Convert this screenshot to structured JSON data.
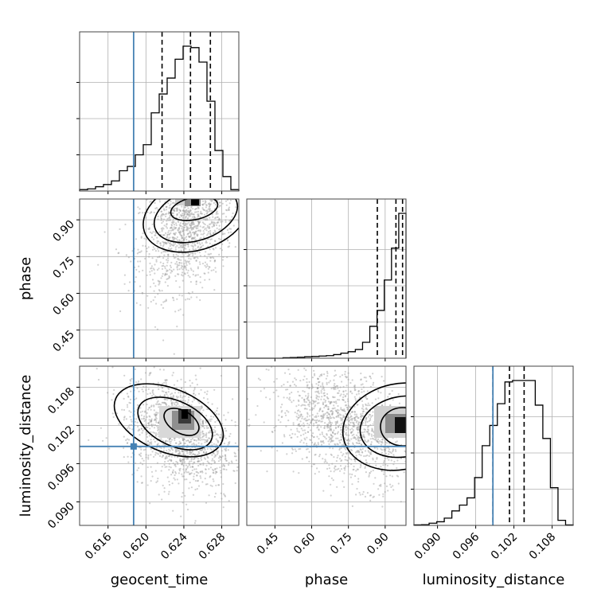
{
  "chart_data": {
    "type": "corner",
    "parameters": [
      "geocent_time",
      "phase",
      "luminosity_distance"
    ],
    "truths": {
      "geocent_time": 0.6187,
      "phase": null,
      "luminosity_distance": 0.0987
    },
    "truth_color": "#4682b4",
    "ranges": {
      "geocent_time": [
        0.613,
        0.6298
      ],
      "phase": [
        0.335,
        0.985
      ],
      "luminosity_distance": [
        0.0863,
        0.1113
      ]
    },
    "ticks": {
      "geocent_time": [
        "0.616",
        "0.620",
        "0.624",
        "0.628"
      ],
      "phase": [
        "0.45",
        "0.60",
        "0.75",
        "0.90"
      ],
      "luminosity_distance": [
        "0.090",
        "0.096",
        "0.102",
        "0.108"
      ]
    },
    "quantiles": {
      "geocent_time": [
        0.6217,
        0.6247,
        0.6268
      ],
      "phase": [
        0.868,
        0.944,
        0.971
      ],
      "luminosity_distance": [
        0.0987,
        0.1013,
        0.1036
      ]
    },
    "histograms": {
      "geocent_time": [
        1,
        1.5,
        3,
        4.5,
        7,
        14,
        17,
        25,
        32,
        54,
        67,
        78,
        91,
        100,
        99,
        89,
        62,
        28,
        10,
        1
      ],
      "phase": [
        0,
        0,
        0,
        0,
        0,
        0.3,
        0.5,
        0.7,
        1,
        1.2,
        1.5,
        1.8,
        2.5,
        3.5,
        4.5,
        6,
        11,
        22,
        33,
        54,
        76,
        100
      ],
      "luminosity_distance": [
        0.3,
        0.5,
        1.5,
        2.5,
        5,
        10,
        14,
        19,
        33,
        55,
        69,
        84,
        99,
        100,
        100,
        100,
        83,
        60,
        26,
        3.5,
        0.3
      ]
    },
    "grid": true
  }
}
